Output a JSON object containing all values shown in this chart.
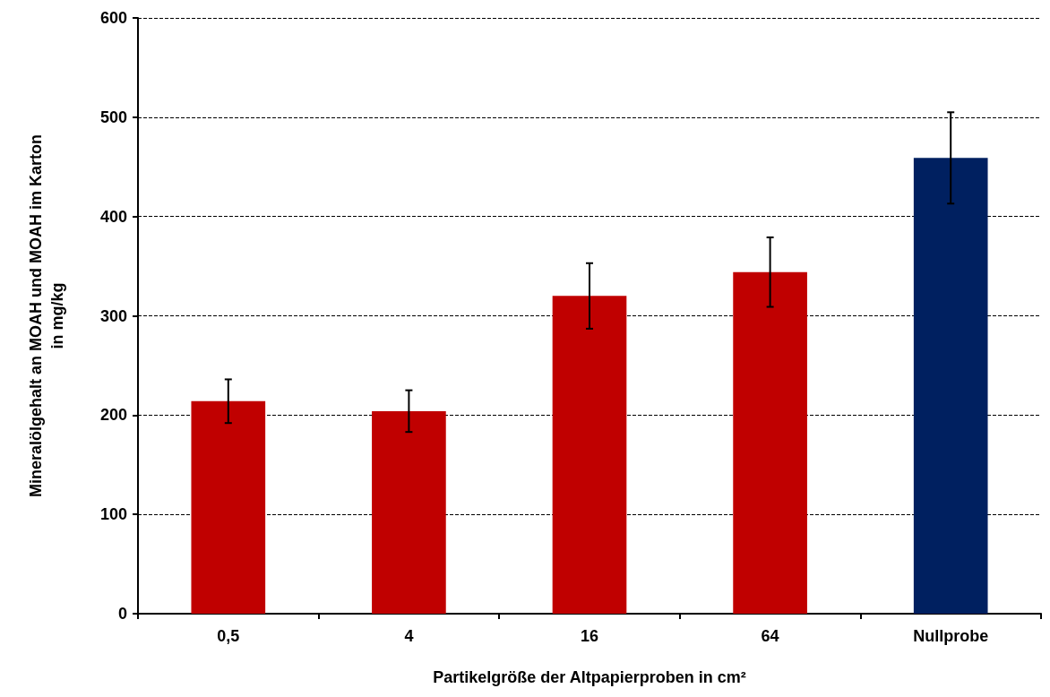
{
  "chart_data": {
    "type": "bar",
    "xlabel": "Partikelgröße der Altpapierproben in cm²",
    "ylabel": "Mineralölgehalt an MOAH und MOAH im Karton\nin mg/kg",
    "categories": [
      "0,5",
      "4",
      "16",
      "64",
      "Nullprobe"
    ],
    "values": [
      214,
      204,
      320,
      344,
      459
    ],
    "errors": [
      22,
      21,
      33,
      35,
      46
    ],
    "colors": [
      "#c00000",
      "#c00000",
      "#c00000",
      "#c00000",
      "#002060"
    ],
    "ylim": [
      0,
      600
    ],
    "yticks": [
      0,
      100,
      200,
      300,
      400,
      500,
      600
    ],
    "grid": "y"
  }
}
